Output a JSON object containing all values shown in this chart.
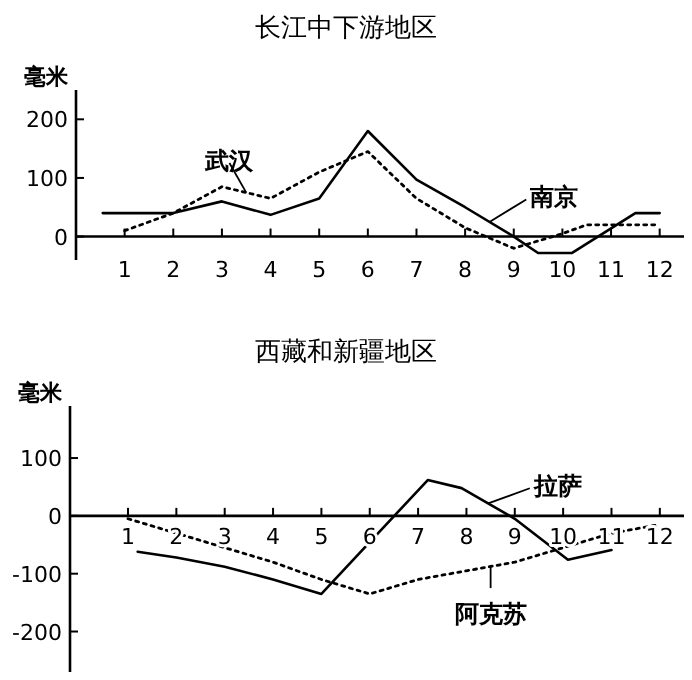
{
  "chart_data": [
    {
      "type": "line",
      "title": "长江中下游地区",
      "ylabel": "毫米",
      "xlim": [
        0,
        12.5
      ],
      "xticks": [
        1,
        2,
        3,
        4,
        5,
        6,
        7,
        8,
        9,
        10,
        11,
        12
      ],
      "ylim": [
        -40,
        250
      ],
      "yticks": [
        0,
        100,
        200
      ],
      "grid": false,
      "marker": "none",
      "series": [
        {
          "name": "武汉",
          "color": "#000000",
          "line_style": "dotted",
          "x": [
            1,
            2,
            3,
            4,
            5,
            6,
            7,
            8,
            9,
            10,
            10.5,
            11,
            12
          ],
          "values": [
            10,
            40,
            85,
            65,
            110,
            145,
            65,
            15,
            -20,
            5,
            20,
            20,
            20
          ]
        },
        {
          "name": "南京",
          "color": "#000000",
          "line_style": "solid",
          "x": [
            0.55,
            2,
            3,
            4,
            5,
            6,
            7,
            8,
            9,
            9.5,
            10.2,
            11.5,
            12
          ],
          "values": [
            40,
            40,
            60,
            37,
            65,
            180,
            97,
            50,
            0,
            -28,
            -28,
            40,
            40
          ]
        }
      ]
    },
    {
      "type": "line",
      "title": "西藏和新疆地区",
      "ylabel": "毫米",
      "xlim": [
        -0.2,
        12.5
      ],
      "xticks": [
        1,
        2,
        3,
        4,
        5,
        6,
        7,
        8,
        9,
        10,
        11,
        12
      ],
      "ylim": [
        -270,
        190
      ],
      "yticks": [
        100,
        0,
        -100,
        -200
      ],
      "grid": false,
      "marker": "none",
      "series": [
        {
          "name": "拉萨",
          "color": "#000000",
          "line_style": "solid",
          "x": [
            1.2,
            2,
            3,
            4,
            5,
            7.2,
            7.9,
            9,
            10.1,
            11
          ],
          "values": [
            -62,
            -72,
            -88,
            -110,
            -135,
            62,
            48,
            -5,
            -76,
            -59
          ]
        },
        {
          "name": "阿克苏",
          "color": "#000000",
          "line_style": "dotted",
          "x": [
            1,
            2,
            3,
            4,
            5,
            6,
            7,
            8,
            9,
            10,
            11,
            12
          ],
          "values": [
            -5,
            -30,
            -55,
            -80,
            -110,
            -135,
            -110,
            -95,
            -80,
            -55,
            -30,
            -15
          ]
        }
      ]
    }
  ]
}
